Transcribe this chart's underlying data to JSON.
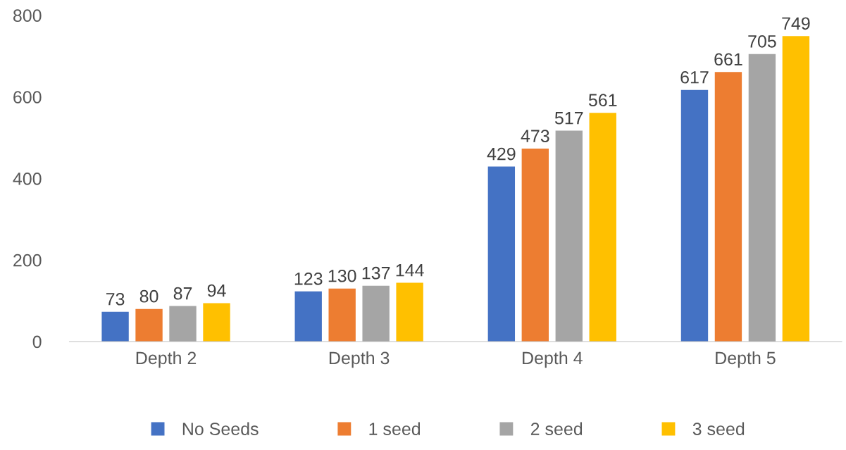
{
  "chart_data": {
    "type": "bar",
    "categories": [
      "Depth 2",
      "Depth 3",
      "Depth 4",
      "Depth 5"
    ],
    "series": [
      {
        "name": "No Seeds",
        "color": "#4472c4",
        "values": [
          73,
          123,
          429,
          617
        ]
      },
      {
        "name": "1 seed",
        "color": "#ed7d31",
        "values": [
          80,
          130,
          473,
          661
        ]
      },
      {
        "name": "2 seed",
        "color": "#a5a5a5",
        "values": [
          87,
          137,
          517,
          705
        ]
      },
      {
        "name": "3 seed",
        "color": "#ffc000",
        "values": [
          94,
          144,
          561,
          749
        ]
      }
    ],
    "ylim": [
      0,
      800
    ],
    "yticks": [
      0,
      200,
      400,
      600,
      800
    ],
    "grid": false,
    "legend": "bottom",
    "data_labels": true
  }
}
